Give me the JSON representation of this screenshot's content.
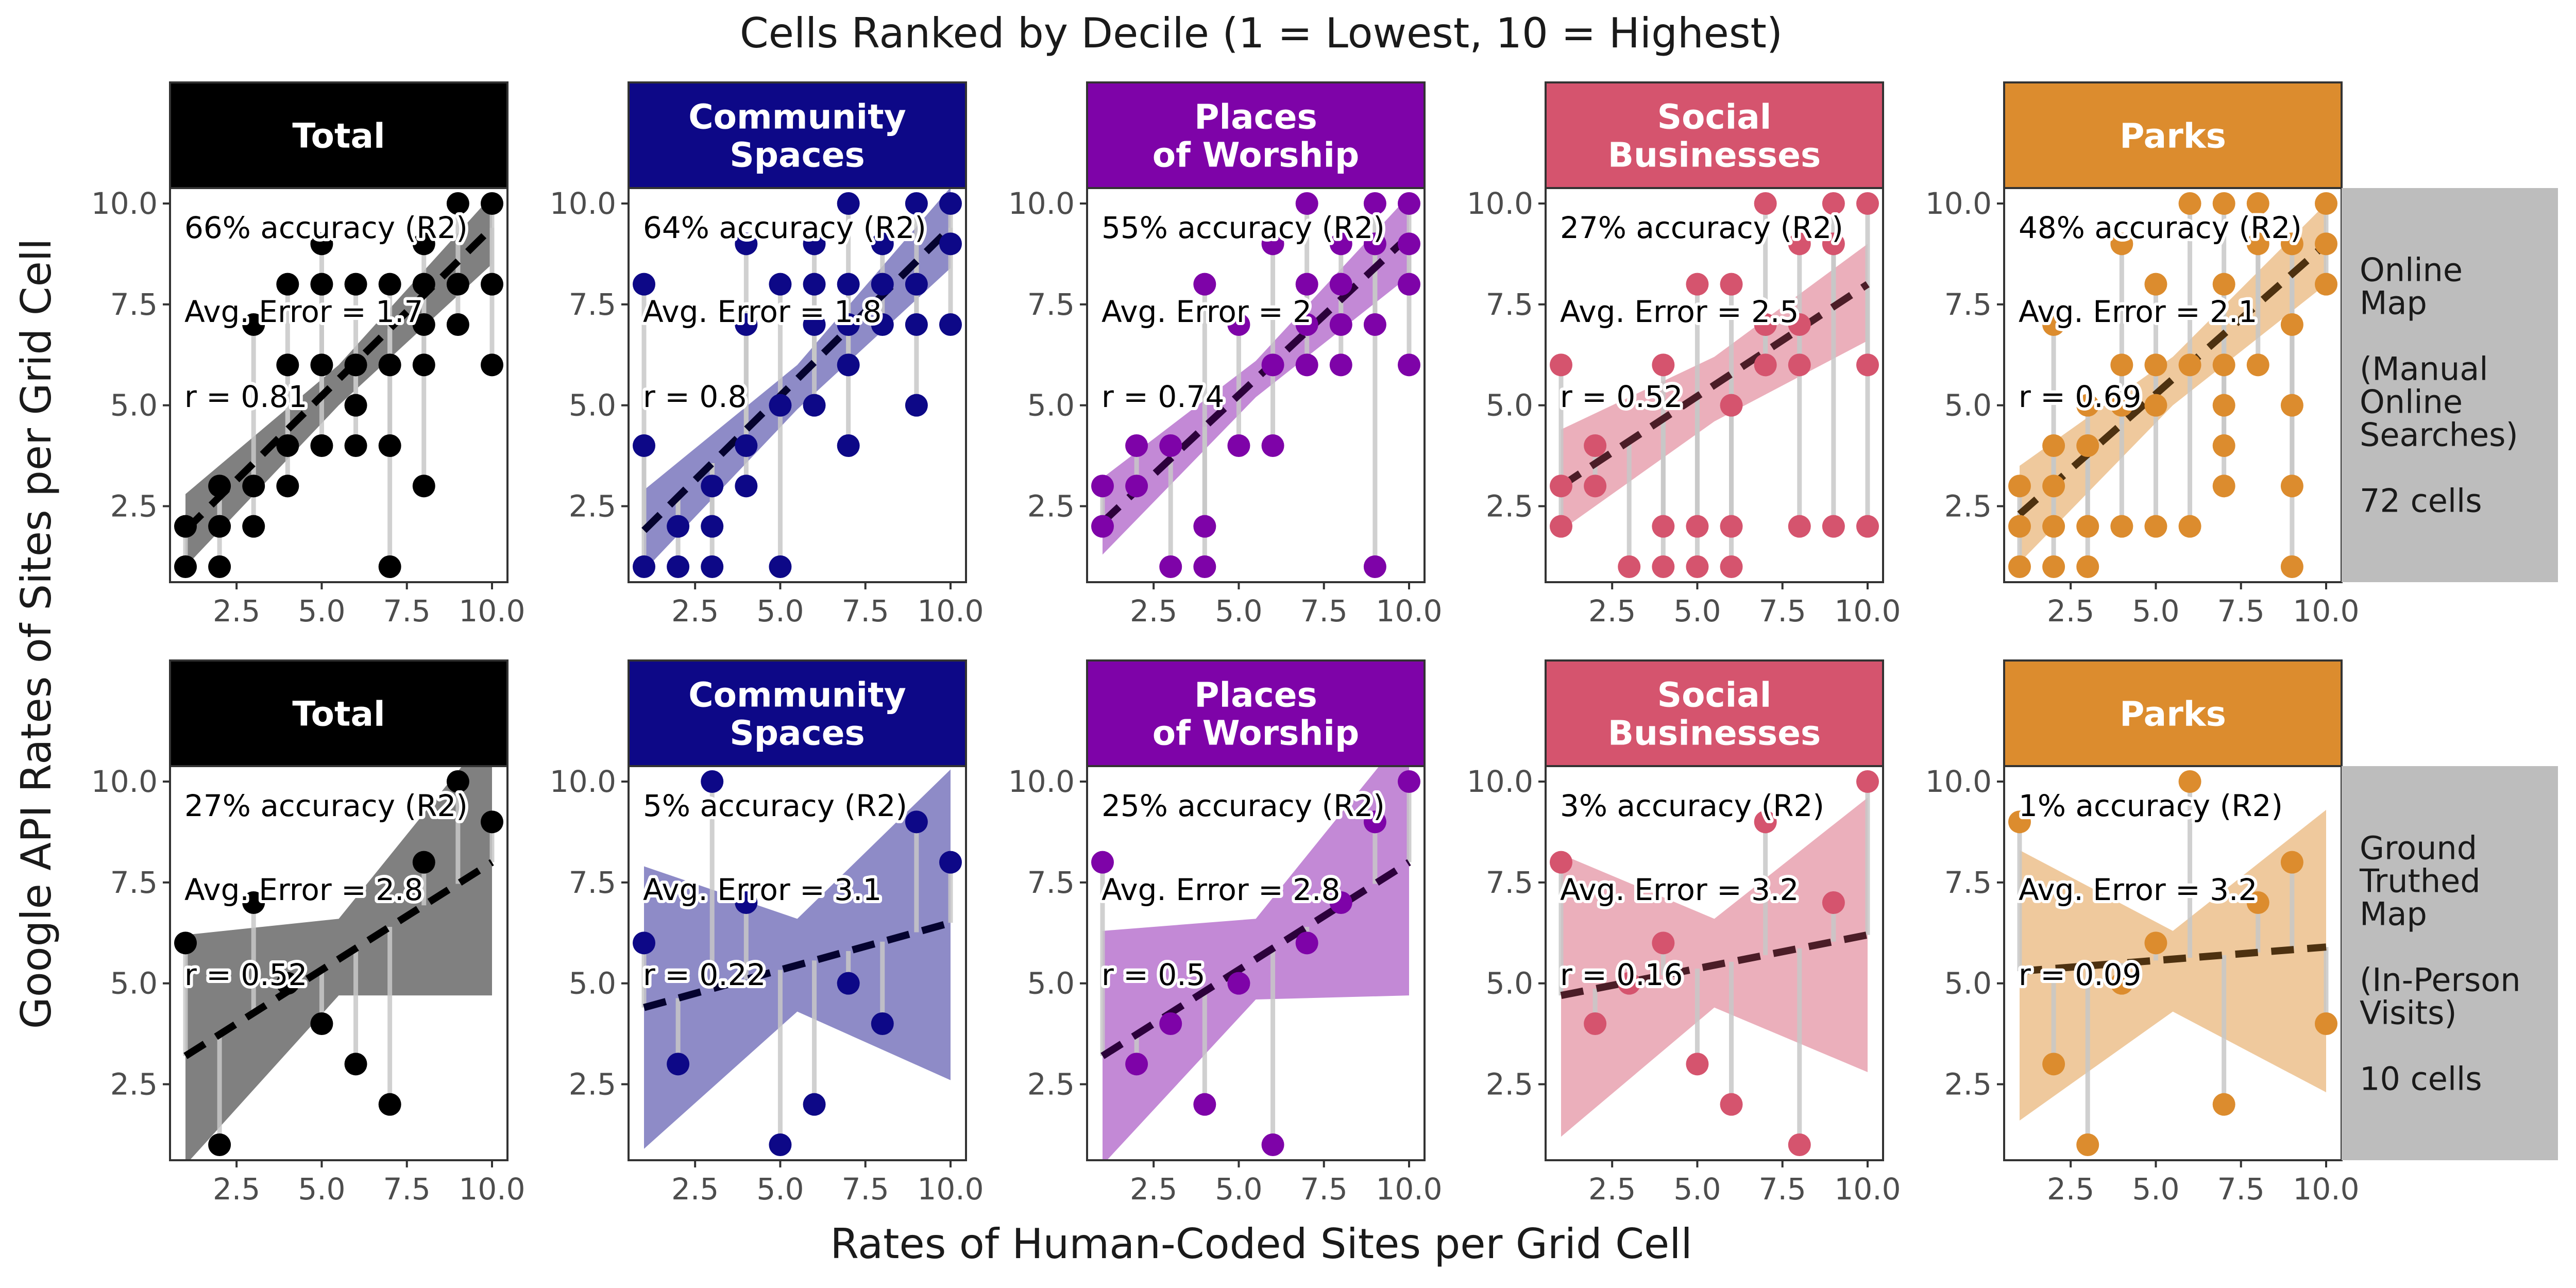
{
  "figure": {
    "title": "Cells Ranked by Decile (1 = Lowest, 10 = Highest)",
    "xlabel": "Rates of Human-Coded Sites per Grid Cell",
    "ylabel": "Google API Rates of Sites per Grid Cell"
  },
  "columns": [
    {
      "label": "Total",
      "color": "#000000"
    },
    {
      "label": "Community\nSpaces",
      "color": "#0d0887"
    },
    {
      "label": "Places\nof Worship",
      "color": "#7e03a8"
    },
    {
      "label": "Social\nBusinesses",
      "color": "#d5546e"
    },
    {
      "label": "Parks",
      "color": "#dc8c2e"
    }
  ],
  "rows": [
    {
      "label": "Online\nMap\n\n(Manual\nOnline\nSearches)\n\n72 cells"
    },
    {
      "label": "Ground\nTruthed\nMap\n\n(In-Person\nVisits)\n\n10 cells"
    }
  ],
  "chart_data": [
    {
      "type": "scatter",
      "panel": "Online Map — Total",
      "xlim": [
        0.5,
        10.5
      ],
      "ylim": [
        0.5,
        10.5
      ],
      "xticks": [
        "2.5",
        "5.0",
        "7.5",
        "10.0"
      ],
      "yticks": [
        "2.5",
        "5.0",
        "7.5",
        "10.0"
      ],
      "annotations": [
        "66% accuracy (R2)",
        "Avg. Error = 1.7",
        "r = 0.81"
      ],
      "trend": {
        "x": [
          1,
          10
        ],
        "y": [
          1.9,
          9.4
        ]
      },
      "band": {
        "x": [
          1,
          5.5,
          10
        ],
        "upper": [
          2.8,
          6.0,
          10.2
        ],
        "lower": [
          1.0,
          5.0,
          8.5
        ]
      },
      "points": [
        [
          1,
          1
        ],
        [
          1,
          2
        ],
        [
          2,
          1
        ],
        [
          2,
          2
        ],
        [
          2,
          3
        ],
        [
          3,
          2
        ],
        [
          3,
          3
        ],
        [
          3,
          7
        ],
        [
          4,
          3
        ],
        [
          4,
          4
        ],
        [
          4,
          6
        ],
        [
          4,
          8
        ],
        [
          5,
          4
        ],
        [
          5,
          6
        ],
        [
          5,
          8
        ],
        [
          5,
          9
        ],
        [
          6,
          4
        ],
        [
          6,
          5
        ],
        [
          6,
          6
        ],
        [
          6,
          8
        ],
        [
          7,
          1
        ],
        [
          7,
          4
        ],
        [
          7,
          6
        ],
        [
          7,
          8
        ],
        [
          8,
          3
        ],
        [
          8,
          6
        ],
        [
          8,
          7
        ],
        [
          8,
          8
        ],
        [
          8,
          9
        ],
        [
          9,
          7
        ],
        [
          9,
          8
        ],
        [
          9,
          10
        ],
        [
          10,
          6
        ],
        [
          10,
          8
        ],
        [
          10,
          10
        ]
      ]
    },
    {
      "type": "scatter",
      "panel": "Online Map — Community Spaces",
      "xlim": [
        0.5,
        10.5
      ],
      "ylim": [
        0.5,
        10.5
      ],
      "xticks": [
        "2.5",
        "5.0",
        "7.5",
        "10.0"
      ],
      "yticks": [
        "2.5",
        "5.0",
        "7.5",
        "10.0"
      ],
      "annotations": [
        "64% accuracy (R2)",
        "Avg. Error = 1.8",
        "r = 0.8"
      ],
      "trend": {
        "x": [
          1,
          10
        ],
        "y": [
          1.9,
          9.4
        ]
      },
      "band": {
        "x": [
          1,
          5.5,
          10
        ],
        "upper": [
          2.9,
          6.0,
          10.4
        ],
        "lower": [
          0.9,
          4.9,
          8.4
        ]
      },
      "points": [
        [
          1,
          1
        ],
        [
          1,
          4
        ],
        [
          1,
          8
        ],
        [
          2,
          1
        ],
        [
          2,
          2
        ],
        [
          3,
          1
        ],
        [
          3,
          2
        ],
        [
          3,
          3
        ],
        [
          4,
          3
        ],
        [
          4,
          4
        ],
        [
          4,
          7
        ],
        [
          4,
          9
        ],
        [
          5,
          1
        ],
        [
          5,
          5
        ],
        [
          5,
          8
        ],
        [
          6,
          5
        ],
        [
          6,
          7
        ],
        [
          6,
          8
        ],
        [
          6,
          9
        ],
        [
          7,
          4
        ],
        [
          7,
          6
        ],
        [
          7,
          7
        ],
        [
          7,
          8
        ],
        [
          7,
          10
        ],
        [
          8,
          7
        ],
        [
          8,
          8
        ],
        [
          8,
          9
        ],
        [
          9,
          5
        ],
        [
          9,
          7
        ],
        [
          9,
          8
        ],
        [
          9,
          10
        ],
        [
          10,
          7
        ],
        [
          10,
          9
        ],
        [
          10,
          10
        ]
      ]
    },
    {
      "type": "scatter",
      "panel": "Online Map — Places of Worship",
      "xlim": [
        0.5,
        10.5
      ],
      "ylim": [
        0.5,
        10.5
      ],
      "xticks": [
        "2.5",
        "5.0",
        "7.5",
        "10.0"
      ],
      "yticks": [
        "2.5",
        "5.0",
        "7.5",
        "10.0"
      ],
      "annotations": [
        "55% accuracy (R2)",
        "Avg. Error = 2",
        "r = 0.74"
      ],
      "trend": {
        "x": [
          1,
          10
        ],
        "y": [
          2.1,
          9.2
        ]
      },
      "band": {
        "x": [
          1,
          5.5,
          10
        ],
        "upper": [
          3.2,
          6.1,
          10.2
        ],
        "lower": [
          1.3,
          5.2,
          8.2
        ]
      },
      "points": [
        [
          1,
          2
        ],
        [
          1,
          3
        ],
        [
          2,
          3
        ],
        [
          2,
          4
        ],
        [
          3,
          1
        ],
        [
          3,
          4
        ],
        [
          4,
          1
        ],
        [
          4,
          2
        ],
        [
          4,
          8
        ],
        [
          5,
          4
        ],
        [
          5,
          7
        ],
        [
          6,
          4
        ],
        [
          6,
          6
        ],
        [
          6,
          9
        ],
        [
          7,
          6
        ],
        [
          7,
          7
        ],
        [
          7,
          8
        ],
        [
          7,
          10
        ],
        [
          8,
          6
        ],
        [
          8,
          7
        ],
        [
          8,
          8
        ],
        [
          8,
          9
        ],
        [
          9,
          1
        ],
        [
          9,
          7
        ],
        [
          9,
          9
        ],
        [
          9,
          10
        ],
        [
          10,
          6
        ],
        [
          10,
          8
        ],
        [
          10,
          9
        ],
        [
          10,
          10
        ]
      ]
    },
    {
      "type": "scatter",
      "panel": "Online Map — Social Businesses",
      "xlim": [
        0.5,
        10.5
      ],
      "ylim": [
        0.5,
        10.5
      ],
      "xticks": [
        "2.5",
        "5.0",
        "7.5",
        "10.0"
      ],
      "yticks": [
        "2.5",
        "5.0",
        "7.5",
        "10.0"
      ],
      "annotations": [
        "27% accuracy (R2)",
        "Avg. Error = 2.5",
        "r = 0.52"
      ],
      "trend": {
        "x": [
          1,
          10
        ],
        "y": [
          3.0,
          8.0
        ]
      },
      "band": {
        "x": [
          1,
          5.5,
          10
        ],
        "upper": [
          4.4,
          6.2,
          9.0
        ],
        "lower": [
          1.9,
          4.6,
          6.6
        ]
      },
      "points": [
        [
          1,
          2
        ],
        [
          1,
          3
        ],
        [
          1,
          6
        ],
        [
          2,
          3
        ],
        [
          2,
          4
        ],
        [
          3,
          1
        ],
        [
          4,
          1
        ],
        [
          4,
          2
        ],
        [
          4,
          6
        ],
        [
          5,
          1
        ],
        [
          5,
          2
        ],
        [
          5,
          8
        ],
        [
          6,
          1
        ],
        [
          6,
          2
        ],
        [
          6,
          5
        ],
        [
          6,
          8
        ],
        [
          7,
          6
        ],
        [
          7,
          7
        ],
        [
          7,
          10
        ],
        [
          8,
          2
        ],
        [
          8,
          6
        ],
        [
          8,
          7
        ],
        [
          8,
          9
        ],
        [
          9,
          2
        ],
        [
          9,
          9
        ],
        [
          9,
          10
        ],
        [
          10,
          2
        ],
        [
          10,
          6
        ],
        [
          10,
          10
        ]
      ]
    },
    {
      "type": "scatter",
      "panel": "Online Map — Parks",
      "xlim": [
        0.5,
        10.5
      ],
      "ylim": [
        0.5,
        10.5
      ],
      "xticks": [
        "2.5",
        "5.0",
        "7.5",
        "10.0"
      ],
      "yticks": [
        "2.5",
        "5.0",
        "7.5",
        "10.0"
      ],
      "annotations": [
        "48% accuracy (R2)",
        "Avg. Error = 2.1",
        "r = 0.69"
      ],
      "trend": {
        "x": [
          1,
          10
        ],
        "y": [
          2.3,
          9.0
        ]
      },
      "band": {
        "x": [
          1,
          5.5,
          10
        ],
        "upper": [
          3.5,
          6.2,
          10.0
        ],
        "lower": [
          1.1,
          5.0,
          8.0
        ]
      },
      "points": [
        [
          1,
          1
        ],
        [
          1,
          2
        ],
        [
          1,
          3
        ],
        [
          2,
          1
        ],
        [
          2,
          2
        ],
        [
          2,
          3
        ],
        [
          2,
          4
        ],
        [
          2,
          7
        ],
        [
          3,
          1
        ],
        [
          3,
          2
        ],
        [
          3,
          4
        ],
        [
          3,
          5
        ],
        [
          4,
          2
        ],
        [
          4,
          5
        ],
        [
          4,
          6
        ],
        [
          4,
          9
        ],
        [
          5,
          2
        ],
        [
          5,
          5
        ],
        [
          5,
          6
        ],
        [
          5,
          8
        ],
        [
          6,
          2
        ],
        [
          6,
          6
        ],
        [
          6,
          10
        ],
        [
          7,
          3
        ],
        [
          7,
          4
        ],
        [
          7,
          5
        ],
        [
          7,
          6
        ],
        [
          7,
          8
        ],
        [
          7,
          10
        ],
        [
          8,
          6
        ],
        [
          8,
          9
        ],
        [
          8,
          10
        ],
        [
          9,
          1
        ],
        [
          9,
          3
        ],
        [
          9,
          5
        ],
        [
          9,
          7
        ],
        [
          9,
          9
        ],
        [
          10,
          8
        ],
        [
          10,
          9
        ],
        [
          10,
          10
        ]
      ]
    },
    {
      "type": "scatter",
      "panel": "Ground Truthed Map — Total",
      "xlim": [
        0.5,
        10.5
      ],
      "ylim": [
        0.5,
        10.5
      ],
      "xticks": [
        "2.5",
        "5.0",
        "7.5",
        "10.0"
      ],
      "yticks": [
        "2.5",
        "5.0",
        "7.5",
        "10.0"
      ],
      "annotations": [
        "27% accuracy (R2)",
        "Avg. Error = 2.8",
        "r = 0.52"
      ],
      "trend": {
        "x": [
          1,
          10
        ],
        "y": [
          3.2,
          8.0
        ]
      },
      "band": {
        "x": [
          1,
          5.5,
          10
        ],
        "upper": [
          6.2,
          6.6,
          11.3
        ],
        "lower": [
          0.5,
          4.7,
          4.7
        ]
      },
      "points": [
        [
          1,
          6
        ],
        [
          2,
          1
        ],
        [
          3,
          7
        ],
        [
          4,
          5
        ],
        [
          5,
          4
        ],
        [
          6,
          3
        ],
        [
          7,
          2
        ],
        [
          8,
          8
        ],
        [
          9,
          10
        ],
        [
          10,
          9
        ]
      ]
    },
    {
      "type": "scatter",
      "panel": "Ground Truthed Map — Community Spaces",
      "xlim": [
        0.5,
        10.5
      ],
      "ylim": [
        0.5,
        10.5
      ],
      "xticks": [
        "2.5",
        "5.0",
        "7.5",
        "10.0"
      ],
      "yticks": [
        "2.5",
        "5.0",
        "7.5",
        "10.0"
      ],
      "annotations": [
        "5% accuracy (R2)",
        "Avg. Error = 3.1",
        "r = 0.22"
      ],
      "trend": {
        "x": [
          1,
          10
        ],
        "y": [
          4.4,
          6.5
        ]
      },
      "band": {
        "x": [
          1,
          5.5,
          10
        ],
        "upper": [
          7.9,
          6.6,
          10.3
        ],
        "lower": [
          0.9,
          4.3,
          2.6
        ]
      },
      "points": [
        [
          1,
          6
        ],
        [
          2,
          3
        ],
        [
          3,
          10
        ],
        [
          4,
          7
        ],
        [
          5,
          1
        ],
        [
          6,
          2
        ],
        [
          7,
          5
        ],
        [
          8,
          4
        ],
        [
          9,
          9
        ],
        [
          10,
          8
        ]
      ]
    },
    {
      "type": "scatter",
      "panel": "Ground Truthed Map — Places of Worship",
      "xlim": [
        0.5,
        10.5
      ],
      "ylim": [
        0.5,
        10.5
      ],
      "xticks": [
        "2.5",
        "5.0",
        "7.5",
        "10.0"
      ],
      "yticks": [
        "2.5",
        "5.0",
        "7.5",
        "10.0"
      ],
      "annotations": [
        "25% accuracy (R2)",
        "Avg. Error = 2.8",
        "r = 0.5"
      ],
      "trend": {
        "x": [
          1,
          10
        ],
        "y": [
          3.2,
          8.0
        ]
      },
      "band": {
        "x": [
          1,
          5.5,
          10
        ],
        "upper": [
          6.3,
          6.6,
          11.3
        ],
        "lower": [
          0.5,
          4.6,
          4.7
        ]
      },
      "points": [
        [
          1,
          8
        ],
        [
          2,
          3
        ],
        [
          3,
          4
        ],
        [
          4,
          2
        ],
        [
          5,
          5
        ],
        [
          6,
          1
        ],
        [
          7,
          6
        ],
        [
          8,
          7
        ],
        [
          9,
          9
        ],
        [
          10,
          10
        ]
      ]
    },
    {
      "type": "scatter",
      "panel": "Ground Truthed Map — Social Businesses",
      "xlim": [
        0.5,
        10.5
      ],
      "ylim": [
        0.5,
        10.5
      ],
      "xticks": [
        "2.5",
        "5.0",
        "7.5",
        "10.0"
      ],
      "yticks": [
        "2.5",
        "5.0",
        "7.5",
        "10.0"
      ],
      "annotations": [
        "3% accuracy (R2)",
        "Avg. Error = 3.2",
        "r = 0.16"
      ],
      "trend": {
        "x": [
          1,
          10
        ],
        "y": [
          4.7,
          6.2
        ]
      },
      "band": {
        "x": [
          1,
          5.5,
          10
        ],
        "upper": [
          8.2,
          6.6,
          9.6
        ],
        "lower": [
          1.2,
          4.4,
          2.8
        ]
      },
      "points": [
        [
          1,
          8
        ],
        [
          2,
          4
        ],
        [
          3,
          5
        ],
        [
          4,
          6
        ],
        [
          5,
          3
        ],
        [
          6,
          2
        ],
        [
          7,
          9
        ],
        [
          8,
          1
        ],
        [
          9,
          7
        ],
        [
          10,
          10
        ]
      ]
    },
    {
      "type": "scatter",
      "panel": "Ground Truthed Map — Parks",
      "xlim": [
        0.5,
        10.5
      ],
      "ylim": [
        0.5,
        10.5
      ],
      "xticks": [
        "2.5",
        "5.0",
        "7.5",
        "10.0"
      ],
      "yticks": [
        "2.5",
        "5.0",
        "7.5",
        "10.0"
      ],
      "annotations": [
        "1% accuracy (R2)",
        "Avg. Error = 3.2",
        "r = 0.09"
      ],
      "trend": {
        "x": [
          1,
          10
        ],
        "y": [
          5.3,
          5.9
        ]
      },
      "band": {
        "x": [
          1,
          5.5,
          10
        ],
        "upper": [
          8.3,
          6.3,
          9.3
        ],
        "lower": [
          1.6,
          4.3,
          2.3
        ]
      },
      "points": [
        [
          1,
          9
        ],
        [
          2,
          3
        ],
        [
          3,
          1
        ],
        [
          4,
          5
        ],
        [
          5,
          6
        ],
        [
          6,
          10
        ],
        [
          7,
          2
        ],
        [
          8,
          7
        ],
        [
          9,
          8
        ],
        [
          10,
          4
        ]
      ]
    }
  ]
}
